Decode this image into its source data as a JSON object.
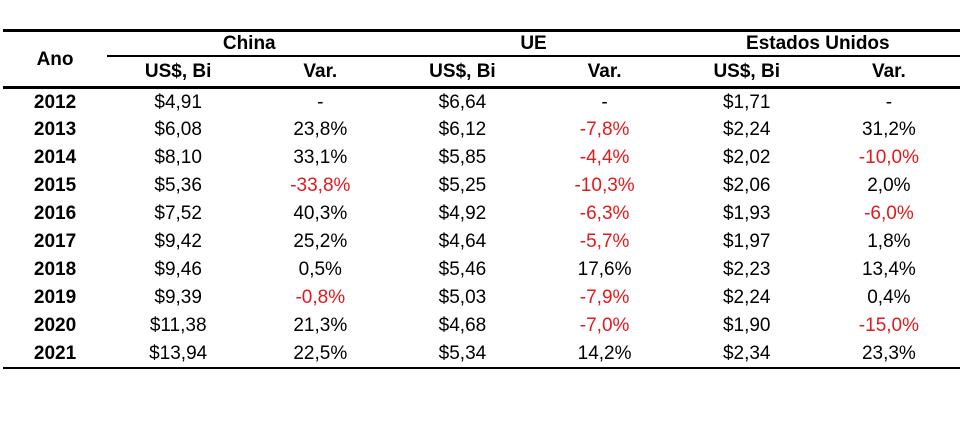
{
  "colors": {
    "negative": "#e3191c",
    "text": "#000000",
    "rule": "#000000",
    "background": "#ffffff"
  },
  "chart_data": {
    "type": "table",
    "year_column_header": "Ano",
    "groups": [
      {
        "label": "China"
      },
      {
        "label": "UE"
      },
      {
        "label": "Estados Unidos"
      }
    ],
    "subheaders": {
      "usd": "US$, Bi",
      "var": "Var."
    },
    "rows": [
      {
        "year": "2012",
        "cells": [
          "$4,91",
          "-",
          "$6,64",
          "-",
          "$1,71",
          "-"
        ]
      },
      {
        "year": "2013",
        "cells": [
          "$6,08",
          "23,8%",
          "$6,12",
          "-7,8%",
          "$2,24",
          "31,2%"
        ]
      },
      {
        "year": "2014",
        "cells": [
          "$8,10",
          "33,1%",
          "$5,85",
          "-4,4%",
          "$2,02",
          "-10,0%"
        ]
      },
      {
        "year": "2015",
        "cells": [
          "$5,36",
          "-33,8%",
          "$5,25",
          "-10,3%",
          "$2,06",
          "2,0%"
        ]
      },
      {
        "year": "2016",
        "cells": [
          "$7,52",
          "40,3%",
          "$4,92",
          "-6,3%",
          "$1,93",
          "-6,0%"
        ]
      },
      {
        "year": "2017",
        "cells": [
          "$9,42",
          "25,2%",
          "$4,64",
          "-5,7%",
          "$1,97",
          "1,8%"
        ]
      },
      {
        "year": "2018",
        "cells": [
          "$9,46",
          "0,5%",
          "$5,46",
          "17,6%",
          "$2,23",
          "13,4%"
        ]
      },
      {
        "year": "2019",
        "cells": [
          "$9,39",
          "-0,8%",
          "$5,03",
          "-7,9%",
          "$2,24",
          "0,4%"
        ]
      },
      {
        "year": "2020",
        "cells": [
          "$11,38",
          "21,3%",
          "$4,68",
          "-7,0%",
          "$1,90",
          "-15,0%"
        ]
      },
      {
        "year": "2021",
        "cells": [
          "$13,94",
          "22,5%",
          "$5,34",
          "14,2%",
          "$2,34",
          "23,3%"
        ]
      }
    ]
  }
}
